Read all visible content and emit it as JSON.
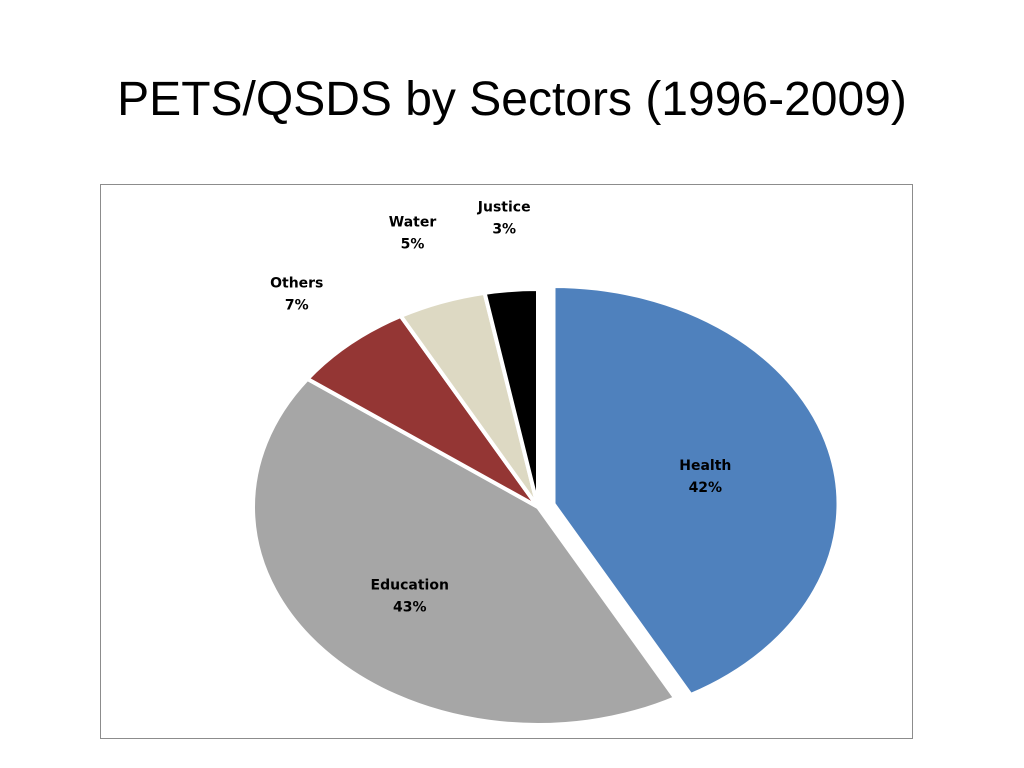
{
  "slide": {
    "title": "PETS/QSDS by Sectors (1996-2009)"
  },
  "chart_data": {
    "type": "pie",
    "title": "",
    "slices": [
      {
        "name": "Health",
        "value": 42,
        "label": "42%",
        "color": "#4F81BD",
        "exploded": true
      },
      {
        "name": "Education",
        "value": 43,
        "label": "43%",
        "color": "#A6A6A6",
        "exploded": false
      },
      {
        "name": "Others",
        "value": 7,
        "label": "7%",
        "color": "#943634",
        "exploded": false
      },
      {
        "name": "Water",
        "value": 5,
        "label": "5%",
        "color": "#DDD9C3",
        "exploded": false
      },
      {
        "name": "Justice",
        "value": 3,
        "label": "3%",
        "color": "#000000",
        "exploded": false
      }
    ],
    "start": "12 o'clock",
    "direction": "clockwise",
    "legend": "none",
    "data_labels": "category name and percentage"
  }
}
